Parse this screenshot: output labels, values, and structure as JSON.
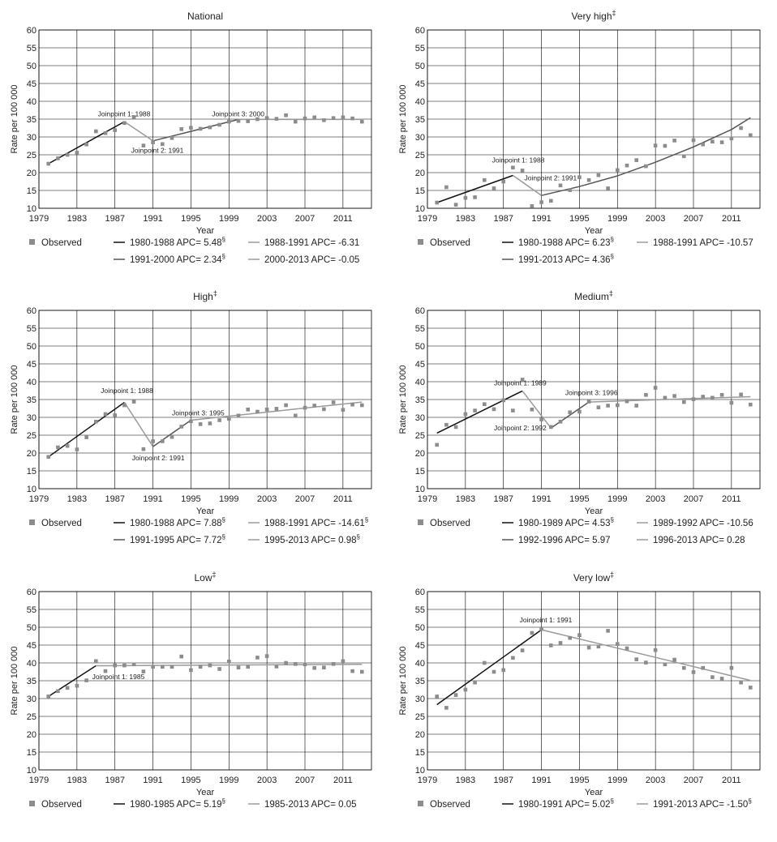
{
  "common": {
    "ylabel": "Rate per 100 000",
    "xlabel": "Year",
    "observed_label": "Observed",
    "yticks": [
      "10",
      "15",
      "20",
      "25",
      "30",
      "35",
      "40",
      "45",
      "50",
      "55",
      "60"
    ],
    "xticks": [
      "1979",
      "1983",
      "1987",
      "1991",
      "1995",
      "1999",
      "2003",
      "2007",
      "2011"
    ]
  },
  "colors": {
    "observed": "#8c8c8c",
    "seg_black": "#111111",
    "seg_dark": "#555555",
    "seg_grey": "#9a9a9a"
  },
  "chart_data": [
    {
      "type": "scatter",
      "title": "National",
      "title_sup": "",
      "xlim": [
        1979,
        2014
      ],
      "ylim": [
        10,
        60
      ],
      "observed": {
        "x": [
          1980,
          1981,
          1982,
          1983,
          1984,
          1985,
          1986,
          1987,
          1988,
          1989,
          1990,
          1991,
          1992,
          1993,
          1994,
          1995,
          1996,
          1997,
          1998,
          1999,
          2000,
          2001,
          2002,
          2003,
          2004,
          2005,
          2006,
          2007,
          2008,
          2009,
          2010,
          2011,
          2012,
          2013
        ],
        "y": [
          22.5,
          24.0,
          25.0,
          25.6,
          27.9,
          31.6,
          31.1,
          31.9,
          33.9,
          35.6,
          27.6,
          28.5,
          28.0,
          29.7,
          32.2,
          32.6,
          32.3,
          32.7,
          33.4,
          34.3,
          34.5,
          34.4,
          35.0,
          35.3,
          35.1,
          36.1,
          34.3,
          35.2,
          35.5,
          34.7,
          35.3,
          35.5,
          35.2,
          34.3
        ]
      },
      "segments": [
        {
          "label": "1980-1988 APC= 5.48",
          "sup": "§",
          "shade": "black",
          "x": [
            1980,
            1988
          ],
          "y": [
            22.5,
            34.3
          ]
        },
        {
          "label": "1988-1991 APC= -6.31",
          "sup": "",
          "shade": "grey",
          "x": [
            1988,
            1991
          ],
          "y": [
            34.3,
            28.9
          ]
        },
        {
          "label": "1991-2000 APC= 2.34",
          "sup": "§",
          "shade": "dark",
          "x": [
            1991,
            2000
          ],
          "y": [
            28.9,
            34.9
          ]
        },
        {
          "label": "2000-2013 APC= -0.05",
          "sup": "",
          "shade": "grey",
          "x": [
            2000,
            2013
          ],
          "y": [
            34.9,
            34.9
          ]
        }
      ],
      "annotations": [
        {
          "text": "Joinpoint 1: 1988",
          "x": 1985.2,
          "y": 35.8
        },
        {
          "text": "Joinpoint 2: 1991",
          "x": 1988.7,
          "y": 25.6
        },
        {
          "text": "Joinpoint 3: 2000",
          "x": 1997.2,
          "y": 35.8
        }
      ]
    },
    {
      "type": "scatter",
      "title": "Very high",
      "title_sup": "‡",
      "xlim": [
        1979,
        2014
      ],
      "ylim": [
        10,
        60
      ],
      "observed": {
        "x": [
          1980,
          1981,
          1982,
          1983,
          1984,
          1985,
          1986,
          1987,
          1988,
          1989,
          1990,
          1991,
          1992,
          1993,
          1994,
          1995,
          1996,
          1997,
          1998,
          1999,
          2000,
          2001,
          2002,
          2003,
          2004,
          2005,
          2006,
          2007,
          2008,
          2009,
          2010,
          2011,
          2012,
          2013
        ],
        "y": [
          11.6,
          15.9,
          11.0,
          12.9,
          13.1,
          17.9,
          15.6,
          17.5,
          21.4,
          20.6,
          10.6,
          11.7,
          12.1,
          16.4,
          15.1,
          18.7,
          17.9,
          19.3,
          15.6,
          20.7,
          22.0,
          23.5,
          21.8,
          27.6,
          27.5,
          29.0,
          24.6,
          29.1,
          27.9,
          28.7,
          28.5,
          29.6,
          32.5,
          30.5
        ]
      },
      "segments": [
        {
          "label": "1980-1988 APC= 6.23",
          "sup": "§",
          "shade": "black",
          "x": [
            1980,
            1988
          ],
          "y": [
            11.6,
            19.2
          ]
        },
        {
          "label": "1988-1991 APC= -10.57",
          "sup": "",
          "shade": "grey",
          "x": [
            1988,
            1991
          ],
          "y": [
            19.2,
            13.6
          ]
        },
        {
          "label": "1991-2013 APC= 4.36",
          "sup": "§",
          "shade": "dark",
          "x": [
            1991,
            1995,
            1999,
            2003,
            2007,
            2011,
            2013
          ],
          "y": [
            13.6,
            16.1,
            19.1,
            22.9,
            27.2,
            32.1,
            35.4
          ]
        }
      ],
      "annotations": [
        {
          "text": "Joinpoint 1: 1988",
          "x": 1985.8,
          "y": 22.8
        },
        {
          "text": "Joinpoint 2: 1991",
          "x": 1989.2,
          "y": 17.8
        }
      ]
    },
    {
      "type": "scatter",
      "title": "High",
      "title_sup": "‡",
      "xlim": [
        1979,
        2014
      ],
      "ylim": [
        10,
        60
      ],
      "observed": {
        "x": [
          1980,
          1981,
          1982,
          1983,
          1984,
          1985,
          1986,
          1987,
          1988,
          1989,
          1990,
          1991,
          1992,
          1993,
          1994,
          1995,
          1996,
          1997,
          1998,
          1999,
          2000,
          2001,
          2002,
          2003,
          2004,
          2005,
          2006,
          2007,
          2008,
          2009,
          2010,
          2011,
          2012,
          2013
        ],
        "y": [
          18.9,
          21.6,
          22.0,
          21.0,
          24.4,
          28.8,
          30.9,
          30.6,
          33.4,
          34.4,
          21.1,
          23.3,
          23.3,
          24.5,
          27.4,
          28.9,
          28.1,
          28.3,
          29.2,
          29.6,
          30.5,
          32.2,
          31.6,
          32.2,
          32.4,
          33.4,
          30.5,
          32.7,
          33.3,
          32.3,
          34.2,
          32.1,
          33.6,
          33.4
        ]
      },
      "segments": [
        {
          "label": "1980-1988 APC= 7.88",
          "sup": "§",
          "shade": "black",
          "x": [
            1980,
            1988
          ],
          "y": [
            18.9,
            34.2
          ]
        },
        {
          "label": "1988-1991 APC= -14.61",
          "sup": "§",
          "shade": "grey",
          "x": [
            1988,
            1991
          ],
          "y": [
            34.2,
            21.8
          ]
        },
        {
          "label": "1991-1995 APC= 7.72",
          "sup": "§",
          "shade": "dark",
          "x": [
            1991,
            1995
          ],
          "y": [
            21.8,
            29.2
          ]
        },
        {
          "label": "1995-2013 APC= 0.98",
          "sup": "§",
          "shade": "grey",
          "x": [
            1995,
            2013
          ],
          "y": [
            29.2,
            34.3
          ]
        }
      ],
      "annotations": [
        {
          "text": "Joinpoint 1: 1988",
          "x": 1985.5,
          "y": 36.8
        },
        {
          "text": "Joinpoint 2: 1991",
          "x": 1988.8,
          "y": 18.0
        },
        {
          "text": "Joinpoint 3: 1995",
          "x": 1993.0,
          "y": 30.6
        }
      ]
    },
    {
      "type": "scatter",
      "title": "Medium",
      "title_sup": "‡",
      "xlim": [
        1979,
        2014
      ],
      "ylim": [
        10,
        60
      ],
      "observed": {
        "x": [
          1980,
          1981,
          1982,
          1983,
          1984,
          1985,
          1986,
          1987,
          1988,
          1989,
          1990,
          1991,
          1992,
          1993,
          1994,
          1995,
          1996,
          1997,
          1998,
          1999,
          2000,
          2001,
          2002,
          2003,
          2004,
          2005,
          2006,
          2007,
          2008,
          2009,
          2010,
          2011,
          2012,
          2013
        ],
        "y": [
          22.3,
          27.9,
          27.3,
          30.9,
          31.9,
          33.7,
          32.3,
          34.8,
          31.9,
          40.6,
          32.2,
          29.4,
          27.3,
          28.8,
          31.4,
          31.6,
          34.4,
          32.8,
          33.3,
          33.4,
          34.5,
          33.3,
          36.3,
          38.3,
          35.5,
          36.0,
          34.3,
          35.1,
          35.8,
          35.5,
          36.3,
          34.1,
          36.4,
          33.6
        ]
      },
      "segments": [
        {
          "label": "1980-1989 APC= 4.53",
          "sup": "§",
          "shade": "black",
          "x": [
            1980,
            1989
          ],
          "y": [
            25.6,
            37.4
          ]
        },
        {
          "label": "1989-1992 APC= -10.56",
          "sup": "",
          "shade": "grey",
          "x": [
            1989,
            1992
          ],
          "y": [
            37.4,
            27.0
          ]
        },
        {
          "label": "1992-1996 APC= 5.97",
          "sup": "",
          "shade": "dark",
          "x": [
            1992,
            1996
          ],
          "y": [
            27.0,
            34.3
          ]
        },
        {
          "label": "1996-2013 APC= 0.28",
          "sup": "",
          "shade": "grey",
          "x": [
            1996,
            2013
          ],
          "y": [
            34.3,
            35.8
          ]
        }
      ],
      "annotations": [
        {
          "text": "Joinpoint 1: 1989",
          "x": 1986.0,
          "y": 39.0
        },
        {
          "text": "Joinpoint 2: 1992",
          "x": 1986.0,
          "y": 26.4
        },
        {
          "text": "Joinpoint 3: 1996",
          "x": 1993.5,
          "y": 36.2
        }
      ]
    },
    {
      "type": "scatter",
      "title": "Low",
      "title_sup": "‡",
      "xlim": [
        1979,
        2014
      ],
      "ylim": [
        10,
        60
      ],
      "observed": {
        "x": [
          1980,
          1981,
          1982,
          1983,
          1984,
          1985,
          1986,
          1987,
          1988,
          1989,
          1990,
          1991,
          1992,
          1993,
          1994,
          1995,
          1996,
          1997,
          1998,
          1999,
          2000,
          2001,
          2002,
          2003,
          2004,
          2005,
          2006,
          2007,
          2008,
          2009,
          2010,
          2011,
          2012,
          2013
        ],
        "y": [
          30.6,
          32.1,
          33.0,
          33.6,
          35.1,
          40.5,
          37.7,
          39.3,
          39.3,
          39.6,
          37.6,
          38.9,
          38.9,
          38.9,
          41.8,
          38.0,
          38.9,
          39.3,
          38.3,
          40.4,
          38.7,
          38.9,
          41.5,
          41.9,
          39.0,
          40.0,
          39.7,
          39.6,
          38.6,
          38.7,
          39.7,
          40.5,
          37.7,
          37.5
        ]
      },
      "segments": [
        {
          "label": "1980-1985 APC= 5.19",
          "sup": "§",
          "shade": "black",
          "x": [
            1980,
            1985
          ],
          "y": [
            30.6,
            39.2
          ]
        },
        {
          "label": "1985-2013 APC= 0.05",
          "sup": "",
          "shade": "grey",
          "x": [
            1985,
            2013
          ],
          "y": [
            39.2,
            39.6
          ]
        }
      ],
      "annotations": [
        {
          "text": "Joinpoint 1: 1985",
          "x": 1984.6,
          "y": 35.4
        }
      ]
    },
    {
      "type": "scatter",
      "title": "Very low",
      "title_sup": "‡",
      "xlim": [
        1979,
        2014
      ],
      "ylim": [
        10,
        60
      ],
      "observed": {
        "x": [
          1980,
          1981,
          1982,
          1983,
          1984,
          1985,
          1986,
          1987,
          1988,
          1989,
          1990,
          1991,
          1992,
          1993,
          1994,
          1995,
          1996,
          1997,
          1998,
          1999,
          2000,
          2001,
          2002,
          2003,
          2004,
          2005,
          2006,
          2007,
          2008,
          2009,
          2010,
          2011,
          2012,
          2013
        ],
        "y": [
          30.6,
          27.4,
          31.0,
          32.5,
          34.5,
          40.0,
          37.5,
          38.0,
          41.4,
          43.5,
          48.4,
          49.5,
          44.9,
          45.6,
          47.0,
          47.8,
          44.3,
          44.6,
          49.0,
          45.3,
          44.1,
          41.0,
          40.1,
          43.6,
          39.6,
          40.9,
          38.6,
          37.4,
          38.6,
          36.0,
          35.6,
          38.6,
          34.5,
          33.1
        ]
      },
      "segments": [
        {
          "label": "1980-1991 APC= 5.02",
          "sup": "§",
          "shade": "black",
          "x": [
            1980,
            1991
          ],
          "y": [
            28.3,
            49.3
          ]
        },
        {
          "label": "1991-2013 APC= -1.50",
          "sup": "§",
          "shade": "grey",
          "x": [
            1991,
            2013
          ],
          "y": [
            49.3,
            35.1
          ]
        }
      ],
      "annotations": [
        {
          "text": "Joinpoint 1: 1991",
          "x": 1988.7,
          "y": 51.4
        }
      ]
    }
  ]
}
